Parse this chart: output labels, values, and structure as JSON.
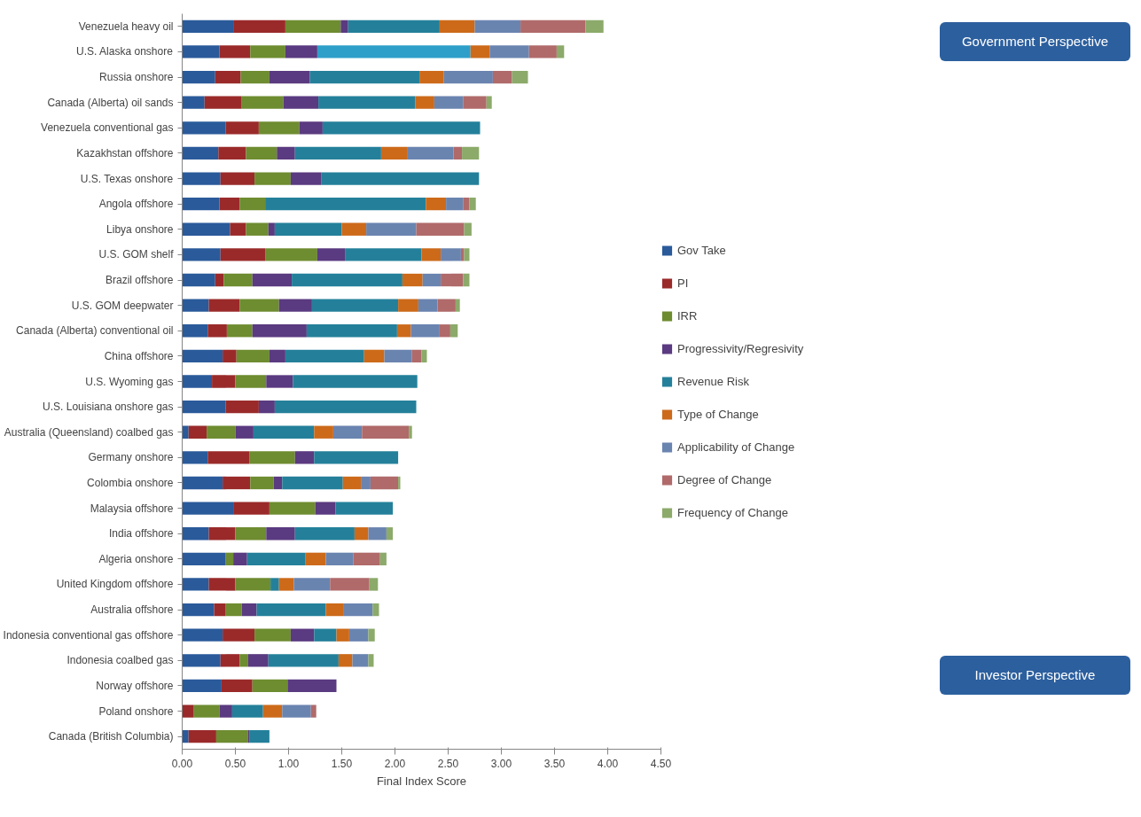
{
  "chart_data": {
    "type": "bar",
    "orientation": "horizontal",
    "stacked": true,
    "xlabel": "Final Index Score",
    "categories": [
      "Venezuela heavy oil",
      "U.S. Alaska onshore",
      "Russia onshore",
      "Canada (Alberta) oil sands",
      "Venezuela conventional gas",
      "Kazakhstan offshore",
      "U.S. Texas onshore",
      "Angola offshore",
      "Libya onshore",
      "U.S. GOM shelf",
      "Brazil offshore",
      "U.S. GOM deepwater",
      "Canada (Alberta) conventional oil",
      "China offshore",
      "U.S. Wyoming gas",
      "U.S. Louisiana onshore gas",
      "Australia (Queensland) coalbed gas",
      "Germany onshore",
      "Colombia onshore",
      "Malaysia offshore",
      "India offshore",
      "Algeria onshore",
      "United Kingdom offshore",
      "Australia offshore",
      "Indonesia conventional gas offshore",
      "Indonesia coalbed gas",
      "Norway offshore",
      "Poland onshore",
      "Canada (British Columbia)"
    ],
    "series": [
      {
        "name": "Gov Take",
        "color": "#2a5a9a",
        "values": [
          0.48,
          0.35,
          0.31,
          0.21,
          0.41,
          0.34,
          0.36,
          0.35,
          0.45,
          0.36,
          0.31,
          0.25,
          0.24,
          0.38,
          0.28,
          0.41,
          0.06,
          0.24,
          0.38,
          0.48,
          0.25,
          0.41,
          0.25,
          0.3,
          0.38,
          0.36,
          0.37,
          0,
          0.06
        ]
      },
      {
        "name": "PI",
        "color": "#9a2a2a",
        "values": [
          0.49,
          0.29,
          0.24,
          0.35,
          0.31,
          0.26,
          0.32,
          0.19,
          0.15,
          0.42,
          0.08,
          0.29,
          0.18,
          0.13,
          0.22,
          0.31,
          0.17,
          0.39,
          0.26,
          0.34,
          0.25,
          0,
          0.25,
          0.11,
          0.3,
          0.18,
          0.29,
          0.11,
          0.26
        ]
      },
      {
        "name": "IRR",
        "color": "#6e8c30",
        "values": [
          0.52,
          0.33,
          0.27,
          0.39,
          0.38,
          0.29,
          0.34,
          0.24,
          0.21,
          0.49,
          0.27,
          0.37,
          0.24,
          0.31,
          0.29,
          0,
          0.27,
          0.43,
          0.22,
          0.43,
          0.29,
          0.07,
          0.33,
          0.15,
          0.34,
          0.08,
          0.33,
          0.24,
          0.3
        ]
      },
      {
        "name": "Progressivity/Regresivity",
        "color": "#5a3a80",
        "values": [
          0.07,
          0.3,
          0.38,
          0.33,
          0.22,
          0.17,
          0.29,
          0,
          0.06,
          0.26,
          0.37,
          0.31,
          0.51,
          0.15,
          0.25,
          0.15,
          0.17,
          0.18,
          0.08,
          0.19,
          0.27,
          0.13,
          0,
          0.14,
          0.22,
          0.19,
          0.46,
          0.12,
          0.01
        ]
      },
      {
        "name": "Revenue Risk",
        "color": "#24809a",
        "colors": [
          null,
          "#2e9fc9",
          null,
          null,
          null,
          null,
          null,
          null,
          null,
          null,
          null,
          null,
          null,
          null,
          null,
          null,
          null,
          null,
          null,
          null,
          null,
          null,
          null,
          null,
          null,
          null,
          null,
          null,
          null
        ],
        "values": [
          0.86,
          1.44,
          1.03,
          0.91,
          1.48,
          0.81,
          1.48,
          1.51,
          0.63,
          0.72,
          1.04,
          0.81,
          0.85,
          0.74,
          1.17,
          1.33,
          0.57,
          0.79,
          0.57,
          0.54,
          0.56,
          0.55,
          0.08,
          0.65,
          0.21,
          0.66,
          0,
          0.29,
          0.19
        ]
      },
      {
        "name": "Type of Change",
        "color": "#cc6a1a",
        "values": [
          0.33,
          0.18,
          0.23,
          0.18,
          0,
          0.25,
          0,
          0.19,
          0.23,
          0.18,
          0.19,
          0.19,
          0.13,
          0.19,
          0,
          0,
          0.18,
          0,
          0.17,
          0,
          0.13,
          0.19,
          0.14,
          0.17,
          0.12,
          0.13,
          0,
          0.18,
          0
        ]
      },
      {
        "name": "Applicability of Change",
        "color": "#6a84b0",
        "values": [
          0.43,
          0.37,
          0.46,
          0.27,
          0,
          0.43,
          0,
          0.16,
          0.47,
          0.19,
          0.17,
          0.18,
          0.27,
          0.26,
          0,
          0,
          0.27,
          0,
          0.09,
          0,
          0.17,
          0.26,
          0.34,
          0.27,
          0.18,
          0.15,
          0,
          0.27,
          0
        ]
      },
      {
        "name": "Degree of Change",
        "color": "#b06a6a",
        "values": [
          0.61,
          0.26,
          0.18,
          0.22,
          0,
          0.08,
          0,
          0.06,
          0.45,
          0.03,
          0.21,
          0.17,
          0.1,
          0.09,
          0,
          0,
          0.44,
          0,
          0.26,
          0,
          0,
          0.25,
          0.37,
          0,
          0,
          0,
          0,
          0.05,
          0
        ]
      },
      {
        "name": "Frequency of Change",
        "color": "#8caa6a",
        "values": [
          0.17,
          0.07,
          0.15,
          0.05,
          0,
          0.16,
          0,
          0.06,
          0.07,
          0.05,
          0.06,
          0.04,
          0.07,
          0.05,
          0,
          0,
          0.03,
          0,
          0.02,
          0,
          0.06,
          0.06,
          0.08,
          0.06,
          0.06,
          0.05,
          0,
          0,
          0
        ]
      }
    ],
    "xlim": [
      0,
      4.5
    ],
    "xticks": [
      {
        "value": 0,
        "label": "0.00"
      },
      {
        "value": 0.5,
        "label": "0.50"
      },
      {
        "value": 1,
        "label": "1.00"
      },
      {
        "value": 1.5,
        "label": "1.50"
      },
      {
        "value": 2,
        "label": "2.00"
      },
      {
        "value": 2.5,
        "label": "2.50"
      },
      {
        "value": 3,
        "label": "3.00"
      },
      {
        "value": 3.5,
        "label": "3.50"
      },
      {
        "value": 4,
        "label": "4.00"
      },
      {
        "value": 4.5,
        "label": "4.50"
      }
    ],
    "grid": false,
    "legend": "right",
    "annotations": [
      "Government Perspective",
      "Investor Perspective"
    ]
  }
}
